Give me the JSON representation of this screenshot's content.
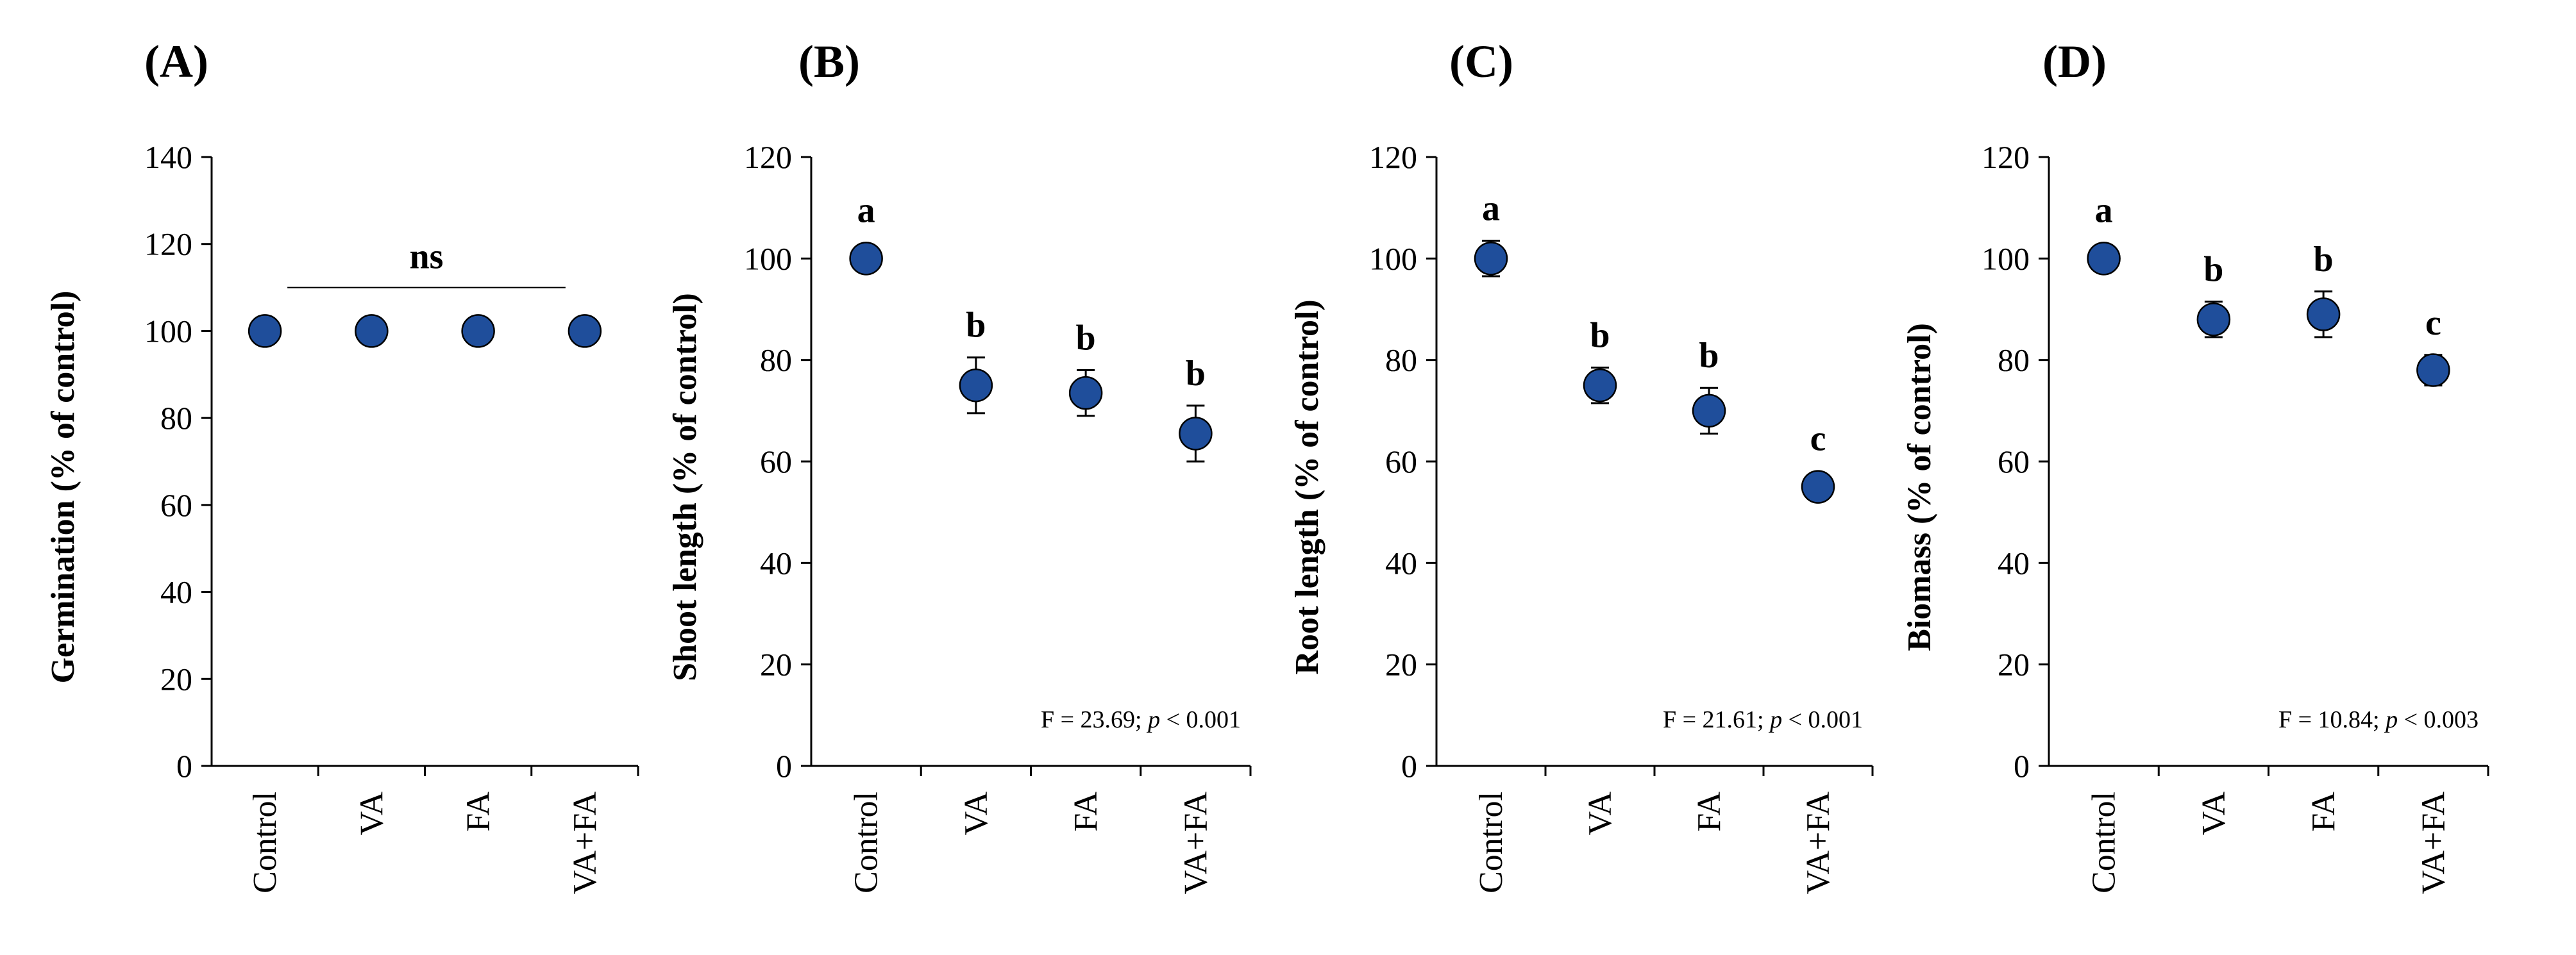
{
  "figure": {
    "background": "#ffffff",
    "marker_fill": "#1f4e9b",
    "marker_edge": "#000000"
  },
  "chart_data": [
    {
      "type": "scatter",
      "panel": "(A)",
      "ylabel": "Germination (% of control)",
      "ylim": [
        0,
        140
      ],
      "yticks": [
        0,
        20,
        40,
        60,
        80,
        100,
        120,
        140
      ],
      "categories": [
        "Control",
        "VA",
        "FA",
        "VA+FA"
      ],
      "values": [
        100,
        100,
        100,
        100
      ],
      "errors": [
        0,
        0,
        0,
        0
      ],
      "letters": [
        "",
        "",
        "",
        ""
      ],
      "ns_label": "ns",
      "ns_line": {
        "from_category": "Control",
        "to_category": "VA+FA",
        "y": 110
      },
      "stat_text": null,
      "stat_p_symbol": null,
      "stat_p_value": null
    },
    {
      "type": "scatter",
      "panel": "(B)",
      "ylabel": "Shoot length (% of control)",
      "ylim": [
        0,
        120
      ],
      "yticks": [
        0,
        20,
        40,
        60,
        80,
        100,
        120
      ],
      "categories": [
        "Control",
        "VA",
        "FA",
        "VA+FA"
      ],
      "values": [
        100,
        75,
        73.5,
        65.5
      ],
      "errors": [
        0,
        5.5,
        4.5,
        5.5
      ],
      "letters": [
        "a",
        "b",
        "b",
        "b"
      ],
      "stat_text": "F = 23.69; ",
      "stat_p_symbol": "p",
      "stat_p_value": " < 0.001"
    },
    {
      "type": "scatter",
      "panel": "(C)",
      "ylabel": "Root length (% of control)",
      "ylim": [
        0,
        120
      ],
      "yticks": [
        0,
        20,
        40,
        60,
        80,
        100,
        120
      ],
      "categories": [
        "Control",
        "VA",
        "FA",
        "VA+FA"
      ],
      "values": [
        100,
        75,
        70,
        55
      ],
      "errors": [
        3.5,
        3.5,
        4.5,
        0
      ],
      "letters": [
        "a",
        "b",
        "b",
        "c"
      ],
      "stat_text": "F = 21.61; ",
      "stat_p_symbol": "p",
      "stat_p_value": " < 0.001"
    },
    {
      "type": "scatter",
      "panel": "(D)",
      "ylabel": "Biomass (% of control)",
      "ylim": [
        0,
        120
      ],
      "yticks": [
        0,
        20,
        40,
        60,
        80,
        100,
        120
      ],
      "categories": [
        "Control",
        "VA",
        "FA",
        "VA+FA"
      ],
      "values": [
        100,
        88,
        89,
        78
      ],
      "errors": [
        0,
        3.5,
        4.5,
        3
      ],
      "letters": [
        "a",
        "b",
        "b",
        "c"
      ],
      "stat_text": "F = 10.84; ",
      "stat_p_symbol": "p",
      "stat_p_value": " < 0.003"
    }
  ]
}
